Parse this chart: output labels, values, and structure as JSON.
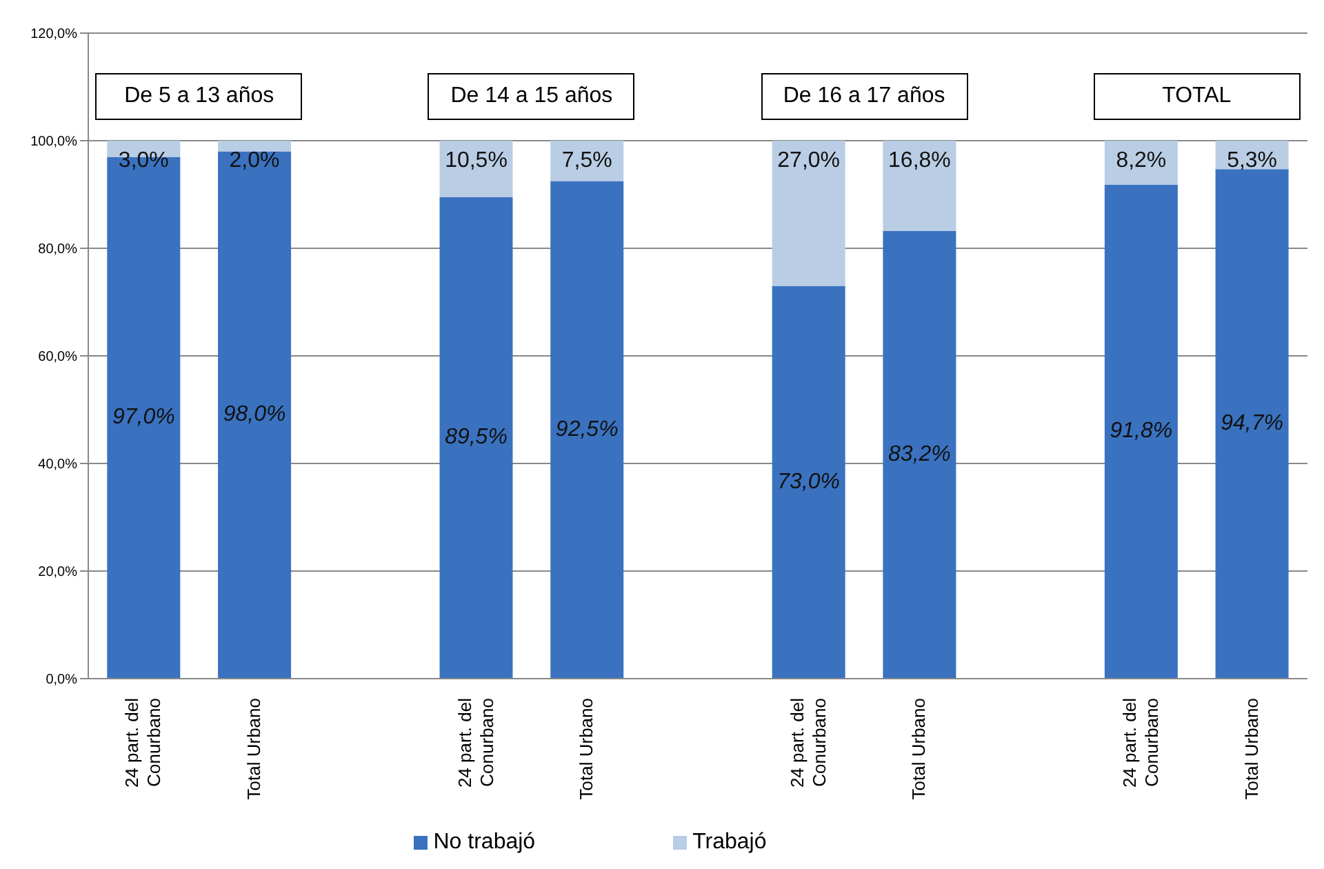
{
  "chart_data": {
    "type": "bar",
    "stacked": true,
    "categories": [
      "24 part. del Conurbano",
      "Total Urbano",
      null,
      "24 part. del Conurbano",
      "Total Urbano",
      null,
      "24 part. del Conurbano",
      "Total Urbano",
      null,
      "24 part. del Conurbano",
      "Total Urbano"
    ],
    "series": [
      {
        "name": "No trabajó",
        "color": "#3a72c0",
        "values": [
          97.0,
          98.0,
          null,
          89.5,
          92.5,
          null,
          73.0,
          83.2,
          null,
          91.8,
          94.7
        ],
        "value_labels": [
          "97,0%",
          "98,0%",
          null,
          "89,5%",
          "92,5%",
          null,
          "73,0%",
          "83,2%",
          null,
          "91,8%",
          "94,7%"
        ]
      },
      {
        "name": "Trabajó",
        "color": "#b9cde5",
        "values": [
          3.0,
          2.0,
          null,
          10.5,
          7.5,
          null,
          27.0,
          16.8,
          null,
          8.2,
          5.3
        ],
        "value_labels": [
          "3,0%",
          "2,0%",
          null,
          "10,5%",
          "7,5%",
          null,
          "27,0%",
          "16,8%",
          null,
          "8,2%",
          "5,3%"
        ]
      }
    ],
    "ylim": [
      0,
      120
    ],
    "yticks": [
      {
        "value": 0,
        "label": "0,0%"
      },
      {
        "value": 20,
        "label": "20,0%"
      },
      {
        "value": 40,
        "label": "40,0%"
      },
      {
        "value": 60,
        "label": "60,0%"
      },
      {
        "value": 80,
        "label": "80,0%"
      },
      {
        "value": 100,
        "label": "100,0%"
      },
      {
        "value": 120,
        "label": "120,0%"
      }
    ],
    "grid": "y",
    "legend": "bottom",
    "annotations": [
      "De 5 a 13 años",
      "De 14 a 15 años",
      "De 16 a 17 años",
      "TOTAL"
    ]
  }
}
